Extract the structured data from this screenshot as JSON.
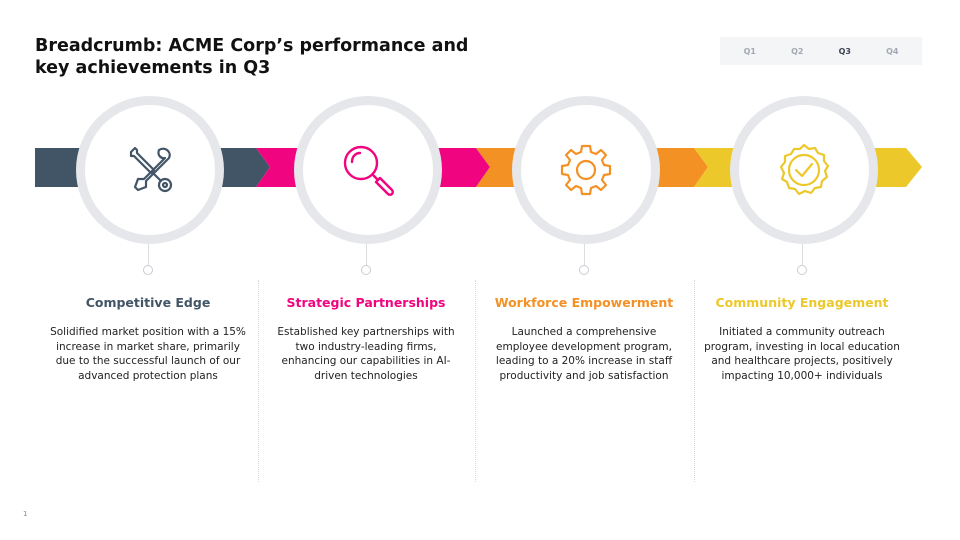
{
  "page": {
    "title": "Breadcrumb: ACME Corp’s performance and key achievements in Q3",
    "number": "1"
  },
  "quarter_nav": {
    "items": [
      "Q1",
      "Q2",
      "Q3",
      "Q4"
    ],
    "active": "Q3"
  },
  "colors": {
    "slate": "#425566",
    "magenta": "#f0047f",
    "orange": "#f39125",
    "yellow": "#ecc82a",
    "ring": "#e6e7eb"
  },
  "steps": [
    {
      "icon": "wrench-screwdriver-icon",
      "title": "Competitive Edge",
      "text": "Solidified market position with a 15% increase in market share, primarily due to the successful launch of our advanced protection plans"
    },
    {
      "icon": "magnifier-icon",
      "title": "Strategic Partnerships",
      "text": "Established key partnerships with two industry-leading firms, enhancing our capabilities in AI-driven technologies"
    },
    {
      "icon": "gear-icon",
      "title": "Workforce Empowerment",
      "text": "Launched a comprehensive employee development program, leading to a 20% increase in staff productivity and job satisfaction"
    },
    {
      "icon": "check-badge-icon",
      "title": "Community Engagement",
      "text": "Initiated a community outreach program, investing in local education and healthcare projects, positively impacting 10,000+ individuals"
    }
  ]
}
